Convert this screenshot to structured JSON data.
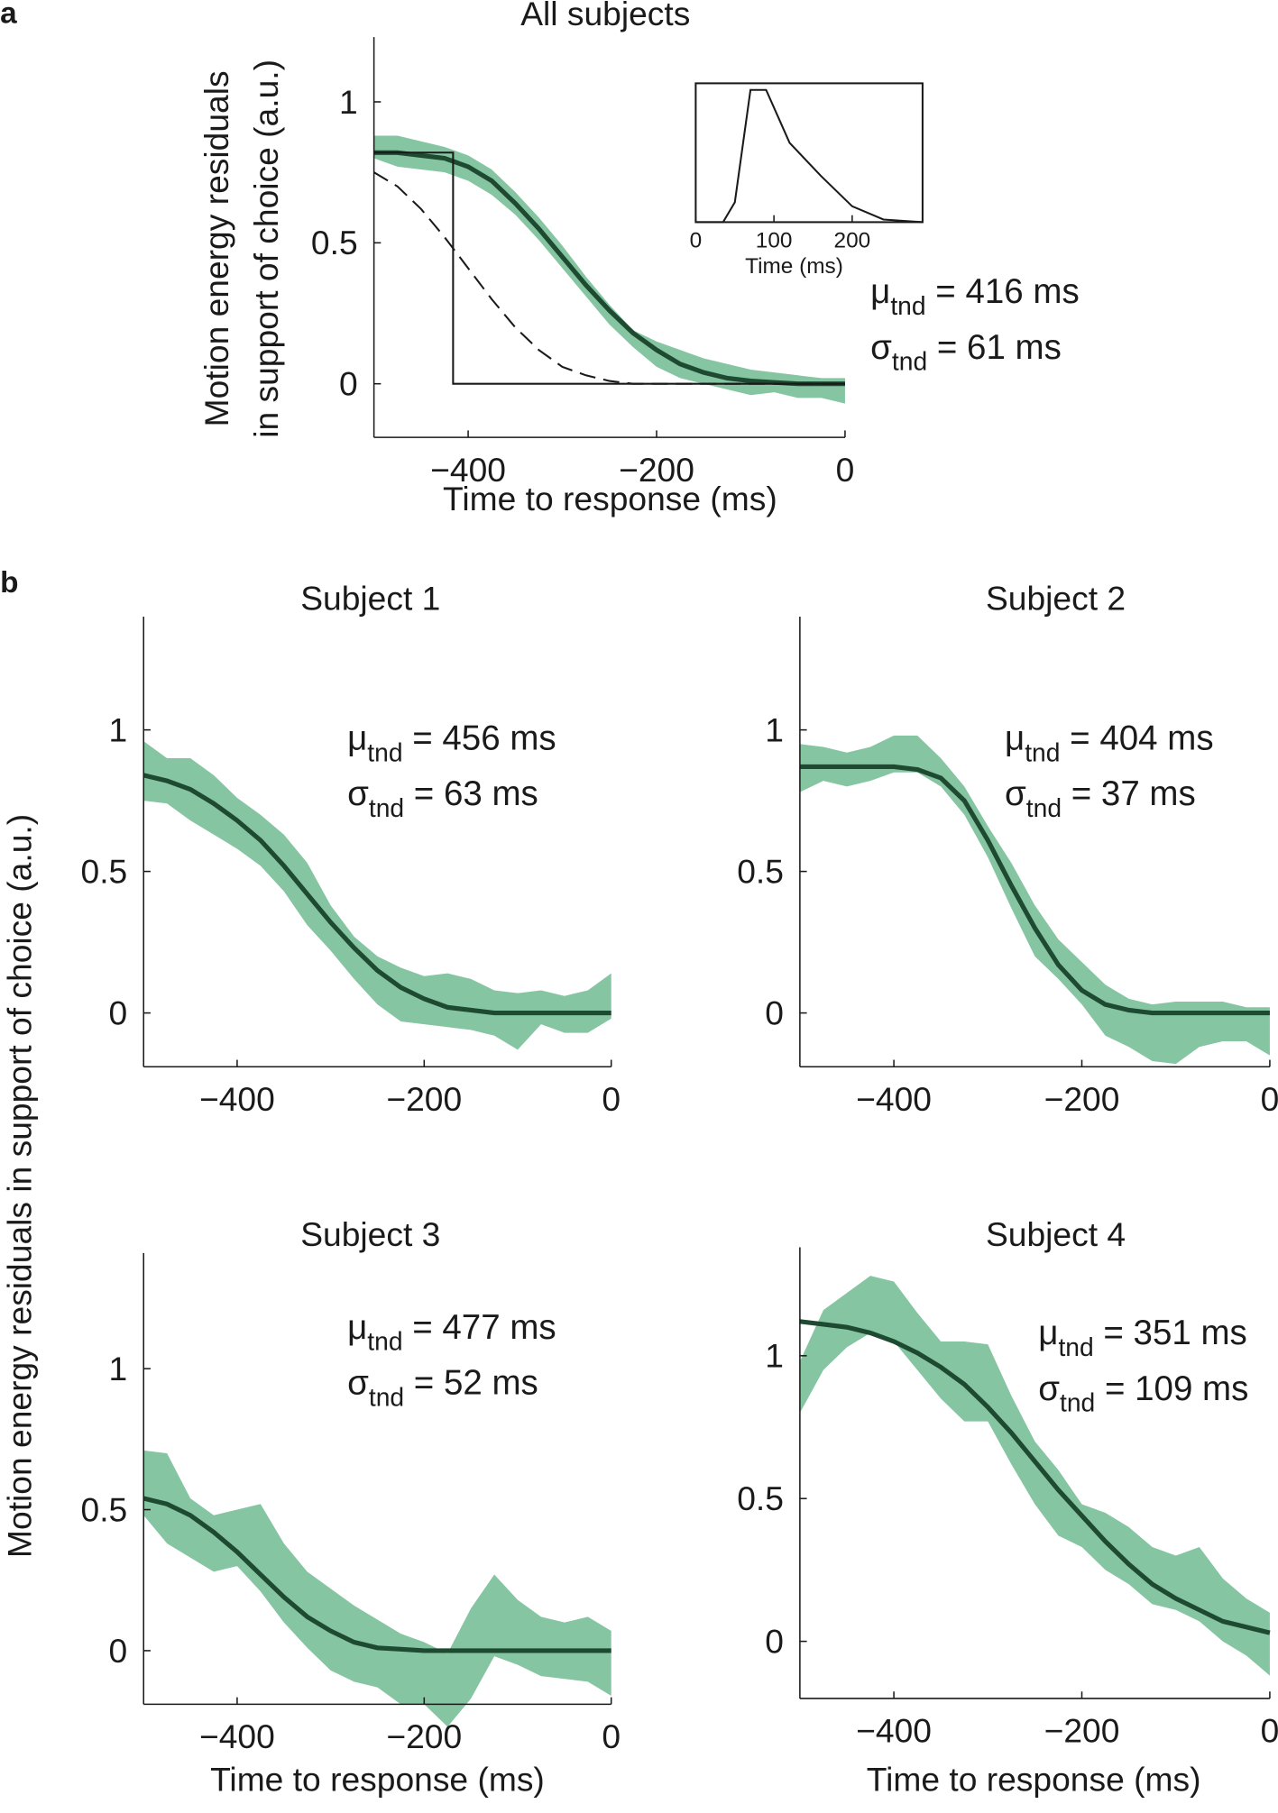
{
  "panel_letters": [
    "a",
    "b"
  ],
  "shared_ylabel": "Motion energy residuals  in support of choice (a.u.)",
  "chart_data": [
    {
      "type": "line",
      "title": "All subjects",
      "xlabel": "Time to response (ms)",
      "ylabel": [
        "Motion energy residuals",
        "in support of choice (a.u.)"
      ],
      "xlim": [
        -500,
        0
      ],
      "ylim": [
        -0.19,
        1.23
      ],
      "xticks": [
        {
          "value": -400,
          "label": "−400"
        },
        {
          "value": -200,
          "label": "−200"
        },
        0
      ],
      "yticks": [
        0,
        0.5,
        1
      ],
      "x": [
        -500,
        -475,
        -450,
        -425,
        -400,
        -375,
        -350,
        -325,
        -300,
        -275,
        -250,
        -225,
        -200,
        -175,
        -150,
        -125,
        -100,
        -75,
        -50,
        -25,
        0
      ],
      "band": {
        "color": "#86c5a2",
        "upper": [
          0.88,
          0.88,
          0.86,
          0.84,
          0.81,
          0.76,
          0.68,
          0.59,
          0.49,
          0.38,
          0.28,
          0.19,
          0.15,
          0.12,
          0.09,
          0.07,
          0.05,
          0.04,
          0.03,
          0.02,
          0.02
        ],
        "lower": [
          0.8,
          0.77,
          0.76,
          0.75,
          0.72,
          0.67,
          0.6,
          0.51,
          0.41,
          0.31,
          0.21,
          0.13,
          0.06,
          0.02,
          0.0,
          -0.02,
          -0.04,
          -0.03,
          -0.05,
          -0.05,
          -0.07
        ]
      },
      "series": [
        {
          "color": "#1d4a30",
          "style": "solid",
          "values": [
            0.82,
            0.82,
            0.81,
            0.8,
            0.77,
            0.72,
            0.64,
            0.55,
            0.45,
            0.35,
            0.26,
            0.18,
            0.12,
            0.07,
            0.04,
            0.02,
            0.01,
            0.005,
            0,
            0,
            0
          ]
        },
        {
          "color": "#1a1a1a",
          "style": "dashed",
          "values": [
            0.75,
            0.7,
            0.62,
            0.52,
            0.41,
            0.3,
            0.2,
            0.12,
            0.06,
            0.03,
            0.01,
            0,
            0,
            0,
            0,
            0,
            0,
            0,
            0,
            0,
            0
          ]
        },
        {
          "color": "#1a1a1a",
          "style": "thin",
          "x": [
            -500,
            -416,
            -416,
            0
          ],
          "values": [
            0.82,
            0.82,
            0,
            0
          ]
        }
      ],
      "annotations": [
        {
          "symbol": "μ",
          "subscript": "tnd",
          "text": " = 416 ms"
        },
        {
          "symbol": "σ",
          "subscript": "tnd",
          "text": " = 61 ms"
        }
      ]
    },
    {
      "type": "line",
      "xlabel": "Time (ms)",
      "xlim": [
        0,
        290
      ],
      "ylim": [
        0,
        1.05
      ],
      "xticks": [
        0,
        100,
        200
      ],
      "x": [
        0,
        35,
        50,
        70,
        90,
        120,
        160,
        200,
        240,
        290
      ],
      "series": [
        {
          "color": "#1a1a1a",
          "style": "thin",
          "values": [
            0,
            0,
            0.15,
            1,
            1,
            0.6,
            0.35,
            0.12,
            0.02,
            0
          ]
        }
      ]
    },
    {
      "type": "line",
      "title": "Subject 1",
      "xlim": [
        -500,
        0
      ],
      "ylim": [
        -0.19,
        1.4
      ],
      "xticks": [
        {
          "value": -400,
          "label": "−400"
        },
        {
          "value": -200,
          "label": "−200"
        },
        0
      ],
      "yticks": [
        0,
        0.5,
        1
      ],
      "x": [
        -500,
        -475,
        -450,
        -425,
        -400,
        -375,
        -350,
        -325,
        -300,
        -275,
        -250,
        -225,
        -200,
        -175,
        -150,
        -125,
        -100,
        -75,
        -50,
        -25,
        0
      ],
      "band": {
        "color": "#86c5a2",
        "upper": [
          0.96,
          0.9,
          0.9,
          0.84,
          0.76,
          0.7,
          0.63,
          0.53,
          0.38,
          0.27,
          0.2,
          0.16,
          0.13,
          0.14,
          0.12,
          0.08,
          0.07,
          0.08,
          0.06,
          0.08,
          0.14
        ],
        "lower": [
          0.75,
          0.74,
          0.68,
          0.63,
          0.58,
          0.52,
          0.43,
          0.31,
          0.22,
          0.12,
          0.03,
          -0.03,
          -0.04,
          -0.05,
          -0.06,
          -0.08,
          -0.13,
          -0.04,
          -0.07,
          -0.07,
          -0.02
        ]
      },
      "series": [
        {
          "color": "#1d4a30",
          "style": "solid",
          "values": [
            0.84,
            0.82,
            0.79,
            0.74,
            0.68,
            0.61,
            0.52,
            0.42,
            0.32,
            0.23,
            0.15,
            0.09,
            0.05,
            0.02,
            0.01,
            0,
            0,
            0,
            0,
            0,
            0
          ]
        }
      ],
      "annotations": [
        {
          "symbol": "μ",
          "subscript": "tnd",
          "text": " = 456 ms"
        },
        {
          "symbol": "σ",
          "subscript": "tnd",
          "text": " = 63 ms"
        }
      ]
    },
    {
      "type": "line",
      "title": "Subject 2",
      "xlim": [
        -500,
        0
      ],
      "ylim": [
        -0.19,
        1.4
      ],
      "xticks": [
        {
          "value": -400,
          "label": "−400"
        },
        {
          "value": -200,
          "label": "−200"
        },
        0
      ],
      "yticks": [
        0,
        0.5,
        1
      ],
      "x": [
        -500,
        -475,
        -450,
        -425,
        -400,
        -375,
        -350,
        -325,
        -300,
        -275,
        -250,
        -225,
        -200,
        -175,
        -150,
        -125,
        -100,
        -75,
        -50,
        -25,
        0
      ],
      "band": {
        "color": "#86c5a2",
        "upper": [
          0.95,
          0.94,
          0.92,
          0.94,
          0.98,
          0.98,
          0.9,
          0.8,
          0.66,
          0.53,
          0.38,
          0.26,
          0.18,
          0.1,
          0.05,
          0.03,
          0.04,
          0.04,
          0.04,
          0.02,
          0.02
        ],
        "lower": [
          0.78,
          0.82,
          0.8,
          0.82,
          0.85,
          0.85,
          0.8,
          0.7,
          0.55,
          0.37,
          0.2,
          0.12,
          0.03,
          -0.08,
          -0.12,
          -0.17,
          -0.18,
          -0.12,
          -0.1,
          -0.1,
          -0.15
        ]
      },
      "series": [
        {
          "color": "#1d4a30",
          "style": "solid",
          "values": [
            0.87,
            0.87,
            0.87,
            0.87,
            0.87,
            0.86,
            0.83,
            0.75,
            0.61,
            0.45,
            0.3,
            0.17,
            0.08,
            0.03,
            0.01,
            0,
            0,
            0,
            0,
            0,
            0
          ]
        }
      ],
      "annotations": [
        {
          "symbol": "μ",
          "subscript": "tnd",
          "text": " = 404 ms"
        },
        {
          "symbol": "σ",
          "subscript": "tnd",
          "text": " = 37 ms"
        }
      ]
    },
    {
      "type": "line",
      "title": "Subject 3",
      "xlabel": "Time to response (ms)",
      "xlim": [
        -500,
        0
      ],
      "ylim": [
        -0.19,
        1.41
      ],
      "xticks": [
        {
          "value": -400,
          "label": "−400"
        },
        {
          "value": -200,
          "label": "−200"
        },
        0
      ],
      "yticks": [
        0,
        0.5,
        1
      ],
      "x": [
        -500,
        -475,
        -450,
        -425,
        -400,
        -375,
        -350,
        -325,
        -300,
        -275,
        -250,
        -225,
        -200,
        -175,
        -150,
        -125,
        -100,
        -75,
        -50,
        -25,
        0
      ],
      "band": {
        "color": "#86c5a2",
        "upper": [
          0.71,
          0.7,
          0.54,
          0.48,
          0.5,
          0.52,
          0.38,
          0.28,
          0.22,
          0.16,
          0.11,
          0.06,
          0.03,
          -0.01,
          0.15,
          0.27,
          0.18,
          0.12,
          0.1,
          0.12,
          0.07
        ],
        "lower": [
          0.48,
          0.38,
          0.33,
          0.28,
          0.3,
          0.21,
          0.1,
          0.01,
          -0.07,
          -0.11,
          -0.13,
          -0.19,
          -0.19,
          -0.27,
          -0.17,
          -0.02,
          -0.05,
          -0.09,
          -0.1,
          -0.11,
          -0.16
        ]
      },
      "series": [
        {
          "color": "#1d4a30",
          "style": "solid",
          "values": [
            0.54,
            0.52,
            0.48,
            0.42,
            0.35,
            0.27,
            0.19,
            0.12,
            0.07,
            0.03,
            0.01,
            0.005,
            0,
            0,
            0,
            0,
            0,
            0,
            0,
            0,
            0
          ]
        }
      ],
      "annotations": [
        {
          "symbol": "μ",
          "subscript": "tnd",
          "text": " = 477 ms"
        },
        {
          "symbol": "σ",
          "subscript": "tnd",
          "text": " = 52 ms"
        }
      ]
    },
    {
      "type": "line",
      "title": "Subject 4",
      "xlabel": "Time to response (ms)",
      "xlim": [
        -500,
        0
      ],
      "ylim": [
        -0.2,
        1.38
      ],
      "xticks": [
        {
          "value": -400,
          "label": "−400"
        },
        {
          "value": -200,
          "label": "−200"
        },
        0
      ],
      "yticks": [
        0,
        0.5,
        1
      ],
      "x": [
        -500,
        -475,
        -450,
        -425,
        -400,
        -375,
        -350,
        -325,
        -300,
        -275,
        -250,
        -225,
        -200,
        -175,
        -150,
        -125,
        -100,
        -75,
        -50,
        -25,
        0
      ],
      "band": {
        "color": "#86c5a2",
        "upper": [
          0.98,
          1.16,
          1.22,
          1.28,
          1.26,
          1.15,
          1.05,
          1.05,
          1.04,
          0.86,
          0.7,
          0.6,
          0.48,
          0.45,
          0.4,
          0.33,
          0.3,
          0.33,
          0.22,
          0.15,
          0.1
        ],
        "lower": [
          0.8,
          0.95,
          1.03,
          1.08,
          1.05,
          0.95,
          0.85,
          0.77,
          0.77,
          0.62,
          0.48,
          0.37,
          0.33,
          0.25,
          0.2,
          0.13,
          0.11,
          0.07,
          0.0,
          -0.05,
          -0.12
        ]
      },
      "series": [
        {
          "color": "#1d4a30",
          "style": "solid",
          "values": [
            1.12,
            1.11,
            1.1,
            1.08,
            1.05,
            1.01,
            0.96,
            0.9,
            0.82,
            0.73,
            0.63,
            0.53,
            0.44,
            0.35,
            0.27,
            0.2,
            0.15,
            0.11,
            0.07,
            0.05,
            0.03
          ]
        }
      ],
      "annotations": [
        {
          "symbol": "μ",
          "subscript": "tnd",
          "text": " = 351 ms"
        },
        {
          "symbol": "σ",
          "subscript": "tnd",
          "text": " = 109 ms"
        }
      ]
    }
  ]
}
